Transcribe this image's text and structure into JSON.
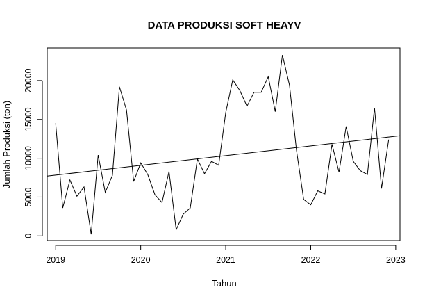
{
  "chart_data": {
    "type": "line",
    "title": "DATA PRODUKSI SOFT HEAYV",
    "xlabel": "Tahun",
    "ylabel": "Jumlah Produksi (ton)",
    "xlim": [
      2018.9,
      2023.05
    ],
    "ylim": [
      -600,
      24200
    ],
    "x_ticks": [
      2019,
      2020,
      2021,
      2022,
      2023
    ],
    "x_tick_labels": [
      "2019",
      "2020",
      "2021",
      "2022",
      "2023"
    ],
    "y_ticks": [
      0,
      5000,
      10000,
      15000,
      20000
    ],
    "y_tick_labels": [
      "0",
      "5000",
      "10000",
      "15000",
      "20000"
    ],
    "grid": false,
    "colors": {
      "line": "#000000",
      "trend": "#000000",
      "axes": "#000000"
    },
    "series": [
      {
        "x": [
          2019.0,
          2019.083,
          2019.167,
          2019.25,
          2019.333,
          2019.417,
          2019.5,
          2019.583,
          2019.667,
          2019.75,
          2019.833,
          2019.917,
          2020.0,
          2020.083,
          2020.167,
          2020.25,
          2020.333,
          2020.417,
          2020.5,
          2020.583,
          2020.667,
          2020.75,
          2020.833,
          2020.917,
          2021.0,
          2021.083,
          2021.167,
          2021.25,
          2021.333,
          2021.417,
          2021.5,
          2021.583,
          2021.667,
          2021.75,
          2021.833,
          2021.917,
          2022.0,
          2022.083,
          2022.167,
          2022.25,
          2022.333,
          2022.417,
          2022.5,
          2022.583,
          2022.667,
          2022.75,
          2022.833,
          2022.917
        ],
        "values": [
          14500,
          3600,
          7200,
          5100,
          6300,
          200,
          10400,
          5600,
          7800,
          19200,
          16200,
          7000,
          9400,
          7900,
          5300,
          4300,
          8300,
          800,
          2800,
          3600,
          9900,
          8000,
          9600,
          9100,
          15900,
          20100,
          18700,
          16700,
          18500,
          18500,
          20500,
          16000,
          23300,
          19400,
          11000,
          4700,
          4000,
          5800,
          5400,
          11800,
          8200,
          14100,
          9600,
          8400,
          7900,
          16500,
          6100,
          12400
        ]
      }
    ],
    "trend": {
      "type": "linear",
      "from": [
        2018.9,
        7700
      ],
      "to": [
        2023.05,
        12900
      ]
    }
  }
}
